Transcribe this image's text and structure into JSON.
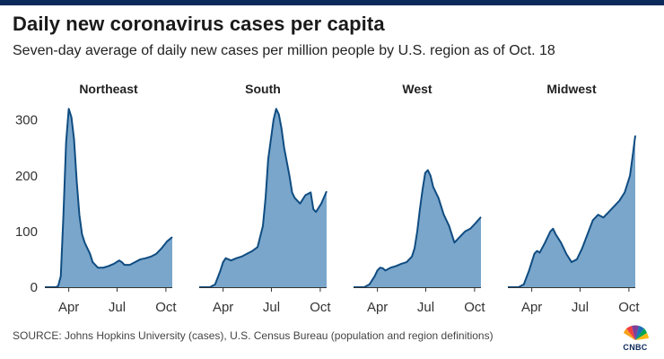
{
  "header": {
    "title": "Daily new coronavirus cases per capita",
    "subtitle": "Seven-day average of daily new cases per million people by U.S. region as of Oct. 18"
  },
  "footer": {
    "source": "SOURCE: Johns Hopkins University (cases), U.S. Census Bureau (population and region definitions)",
    "logo_text": "CNBC"
  },
  "style": {
    "area_fill": "#7aa6cb",
    "line_color": "#0f4c81",
    "axis_color": "#333333"
  },
  "chart_data": {
    "type": "area",
    "ylim": [
      0,
      330
    ],
    "yticks": [
      0,
      100,
      200,
      300
    ],
    "xlim": [
      0,
      240
    ],
    "xticks": [
      {
        "label": "Apr",
        "value": 45
      },
      {
        "label": "Jul",
        "value": 136
      },
      {
        "label": "Oct",
        "value": 228
      }
    ],
    "panels": [
      {
        "name": "Northeast",
        "x": [
          0,
          20,
          25,
          30,
          35,
          40,
          45,
          50,
          55,
          60,
          65,
          70,
          75,
          80,
          85,
          90,
          100,
          110,
          120,
          130,
          140,
          145,
          150,
          160,
          170,
          180,
          190,
          200,
          210,
          220,
          230,
          240
        ],
        "y": [
          0,
          0,
          2,
          20,
          130,
          260,
          320,
          305,
          265,
          190,
          130,
          95,
          80,
          70,
          60,
          45,
          35,
          35,
          38,
          42,
          48,
          45,
          40,
          40,
          45,
          50,
          52,
          55,
          60,
          70,
          82,
          90
        ]
      },
      {
        "name": "South",
        "x": [
          0,
          20,
          30,
          40,
          45,
          50,
          55,
          60,
          70,
          80,
          90,
          100,
          110,
          120,
          125,
          130,
          140,
          145,
          150,
          155,
          160,
          170,
          175,
          180,
          190,
          200,
          210,
          215,
          220,
          230,
          240
        ],
        "y": [
          0,
          0,
          5,
          30,
          45,
          52,
          50,
          48,
          52,
          55,
          60,
          65,
          72,
          110,
          160,
          230,
          300,
          320,
          310,
          285,
          250,
          200,
          170,
          160,
          150,
          165,
          170,
          140,
          135,
          150,
          172
        ]
      },
      {
        "name": "West",
        "x": [
          0,
          20,
          30,
          40,
          45,
          50,
          55,
          60,
          70,
          80,
          90,
          100,
          110,
          115,
          120,
          125,
          130,
          135,
          140,
          145,
          150,
          160,
          170,
          180,
          190,
          200,
          210,
          220,
          230,
          240
        ],
        "y": [
          0,
          0,
          5,
          20,
          30,
          35,
          34,
          30,
          35,
          38,
          42,
          45,
          55,
          70,
          100,
          140,
          175,
          205,
          210,
          200,
          180,
          160,
          130,
          110,
          80,
          90,
          100,
          105,
          115,
          126
        ]
      },
      {
        "name": "Midwest",
        "x": [
          0,
          20,
          30,
          40,
          50,
          55,
          60,
          70,
          80,
          85,
          90,
          100,
          110,
          120,
          130,
          140,
          150,
          160,
          170,
          180,
          190,
          200,
          210,
          220,
          230,
          235,
          240
        ],
        "y": [
          0,
          0,
          5,
          30,
          60,
          65,
          62,
          80,
          100,
          105,
          95,
          80,
          60,
          45,
          50,
          70,
          95,
          120,
          130,
          125,
          135,
          145,
          155,
          170,
          200,
          235,
          272
        ]
      }
    ]
  }
}
